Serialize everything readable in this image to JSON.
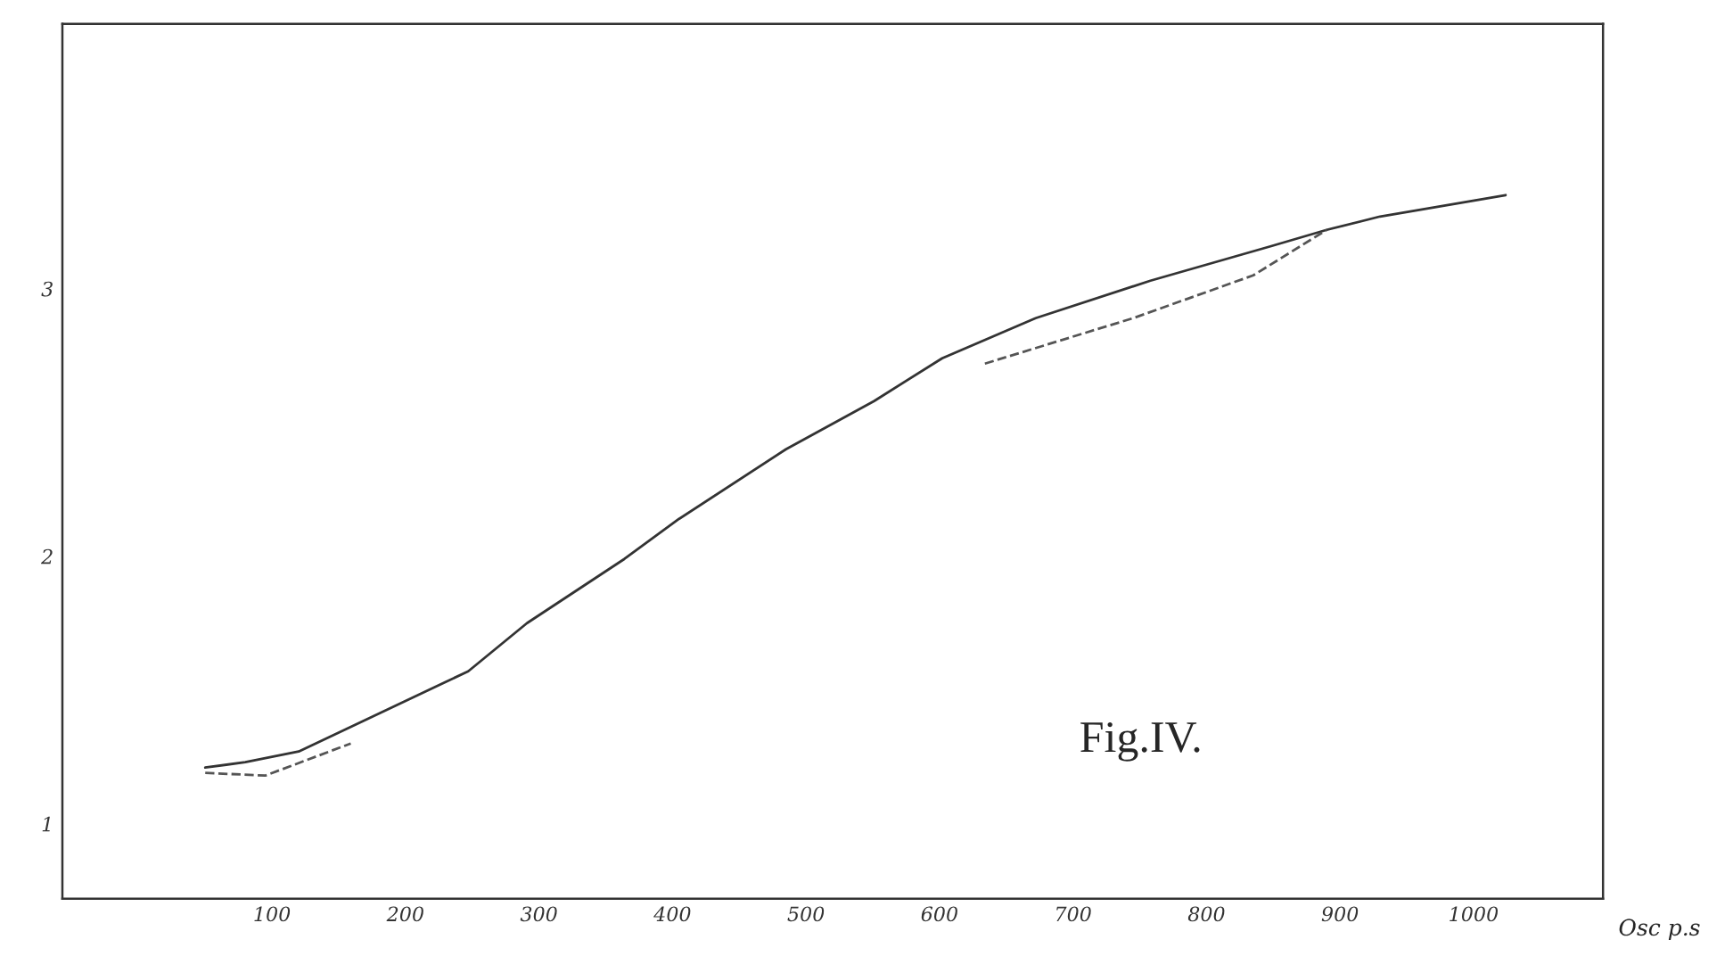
{
  "chart_data": {
    "type": "line",
    "xlabel": "Osc p.s",
    "annotations": [
      "Fig.IV."
    ],
    "series": [
      {
        "color": "#333333",
        "line_style": "solid",
        "x": [
          50,
          80,
          120,
          247,
          291,
          364,
          405,
          485,
          551,
          602,
          672,
          758,
          849,
          890,
          930,
          1024
        ],
        "values": [
          1.21,
          1.23,
          1.27,
          1.57,
          1.75,
          1.99,
          2.14,
          2.4,
          2.58,
          2.74,
          2.89,
          3.03,
          3.16,
          3.22,
          3.27,
          3.35
        ]
      },
      {
        "color": "#555555",
        "line_style": "dashed",
        "x": [
          50,
          95,
          159
        ],
        "values": [
          1.19,
          1.18,
          1.3
        ]
      },
      {
        "color": "#555555",
        "line_style": "dashed",
        "x": [
          634,
          745,
          835,
          890
        ],
        "values": [
          2.72,
          2.89,
          3.05,
          3.22
        ]
      }
    ],
    "xlim": [
      -57,
      1097
    ],
    "ylim": [
      0.72,
      3.99
    ],
    "xticks": [
      100,
      200,
      300,
      400,
      500,
      600,
      700,
      800,
      900,
      1000
    ],
    "yticks": [
      1,
      2,
      3
    ],
    "grid": false,
    "legend": false,
    "marker": "none"
  }
}
